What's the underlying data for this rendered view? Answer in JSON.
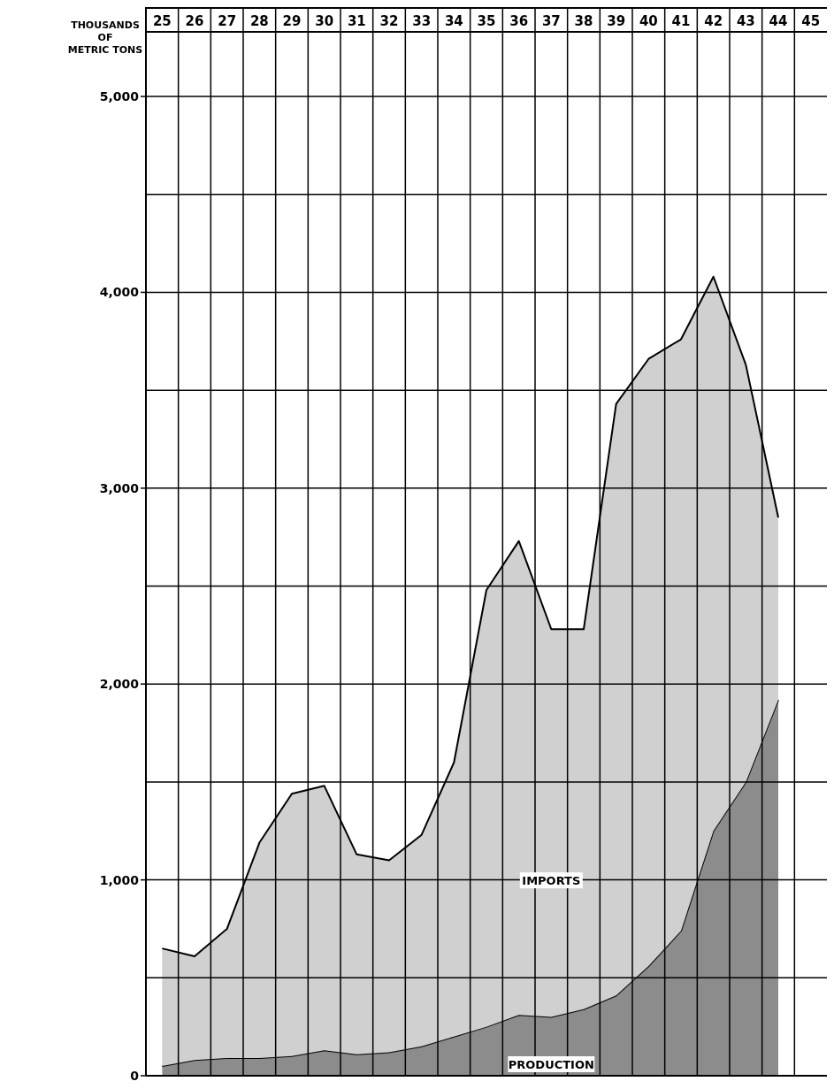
{
  "chart_data": {
    "type": "area",
    "stacked": true,
    "ylabel": "THOUSANDS OF METRIC TONS",
    "categories": [
      "25",
      "26",
      "27",
      "28",
      "29",
      "30",
      "31",
      "32",
      "33",
      "34",
      "35",
      "36",
      "37",
      "38",
      "39",
      "40",
      "41",
      "42",
      "43",
      "44",
      "45"
    ],
    "series": [
      {
        "name": "PRODUCTION",
        "color": "#8c8c8c",
        "values": [
          50,
          80,
          90,
          90,
          100,
          130,
          110,
          120,
          150,
          200,
          250,
          310,
          300,
          340,
          410,
          560,
          740,
          1250,
          1500,
          1920,
          null
        ]
      },
      {
        "name": "IMPORTS",
        "color": "#d0d0d0",
        "values": [
          600,
          530,
          660,
          1100,
          1340,
          1350,
          1020,
          980,
          1080,
          1400,
          2230,
          2420,
          1980,
          1940,
          3020,
          3100,
          3020,
          2830,
          2130,
          930,
          null
        ]
      }
    ],
    "ylim": [
      0,
      5330
    ],
    "yticks": [
      0,
      {
        "value": 500,
        "label": null
      },
      {
        "value": 1000,
        "label": "1,000"
      },
      {
        "value": 1500,
        "label": null
      },
      {
        "value": 2000,
        "label": "2,000"
      },
      {
        "value": 2500,
        "label": null
      },
      {
        "value": 3000,
        "label": "3,000"
      },
      {
        "value": 3500,
        "label": null
      },
      {
        "value": 4000,
        "label": "4,000"
      },
      {
        "value": 4500,
        "label": null
      },
      {
        "value": 5000,
        "label": "5,000"
      }
    ],
    "grid": true
  }
}
